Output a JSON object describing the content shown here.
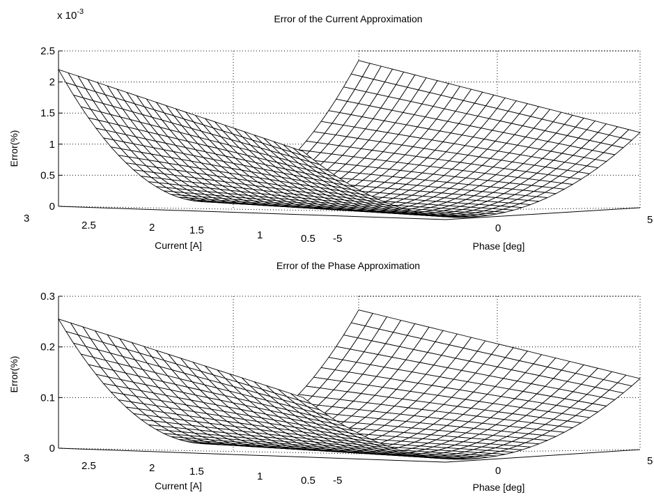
{
  "chart_data": [
    {
      "type": "surface",
      "title": "Error of the Current Approximation",
      "zlabel": "Error(%)",
      "xlabel": "Current [A]",
      "ylabel": "Phase [deg]",
      "z_exponent_label": "x 10",
      "z_exponent_power": "-3",
      "x_range": [
        0.5,
        3
      ],
      "y_range": [
        -5,
        5
      ],
      "zlim": [
        0,
        0.0025
      ],
      "x_ticks": [
        "0.5",
        "1",
        "1.5",
        "2",
        "2.5",
        "3"
      ],
      "y_ticks": [
        "-5",
        "0",
        "5"
      ],
      "z_ticks": [
        "0",
        "0.5",
        "1",
        "1.5",
        "2",
        "2.5"
      ],
      "z_tick_values": [
        0,
        0.0005,
        0.001,
        0.0015,
        0.002,
        0.0025
      ],
      "max_error": 0.0022,
      "mesh_resolution": [
        26,
        41
      ],
      "grid": true
    },
    {
      "type": "surface",
      "title": "Error of the Phase Approximation",
      "zlabel": "Error(%)",
      "xlabel": "Current [A]",
      "ylabel": "Phase [deg]",
      "x_range": [
        0.5,
        3
      ],
      "y_range": [
        -5,
        5
      ],
      "zlim": [
        0,
        0.3
      ],
      "x_ticks": [
        "0.5",
        "1",
        "1.5",
        "2",
        "2.5",
        "3"
      ],
      "y_ticks": [
        "-5",
        "0",
        "5"
      ],
      "z_ticks": [
        "0",
        "0.1",
        "0.2",
        "0.3"
      ],
      "z_tick_values": [
        0,
        0.1,
        0.2,
        0.3
      ],
      "max_error": 0.255,
      "mesh_resolution": [
        21,
        41
      ],
      "grid": true
    }
  ]
}
